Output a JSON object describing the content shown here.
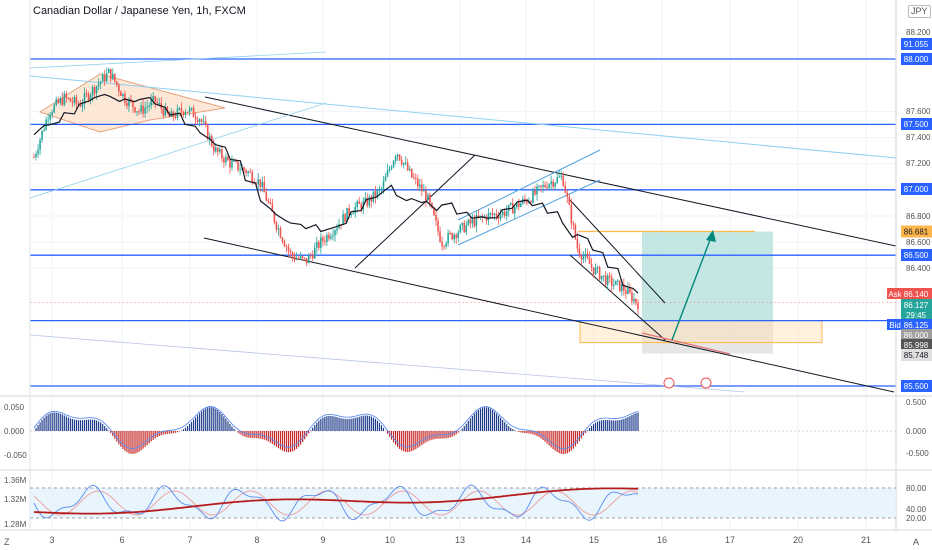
{
  "header": {
    "title": "Canadian Dollar / Japanese Yen, 1h, FXCM",
    "currency_badge": "JPY",
    "zoom_toggle": "Z",
    "auto_toggle": "A"
  },
  "colors": {
    "level_line": "#2962ff",
    "trend_line": "#131722",
    "channel_line": "#4fa3e0",
    "bull": "#26a69a",
    "bear": "#ef5350",
    "long_target_zone": "#b2dfdb",
    "long_stop_zone": "#e0e0e0",
    "ask_label": "#ef5350",
    "bid_label": "#2962ff"
  },
  "price_labels": {
    "levels": [
      "91.055",
      "88.000",
      "87.500",
      "87.000",
      "86.500",
      "85.500"
    ],
    "ticks": [
      "88.200",
      "87.600",
      "87.400",
      "87.200",
      "86.800",
      "86.600",
      "86.400"
    ],
    "target_price": "86.681",
    "ask_tag": "Ask",
    "ask_price": "86.140",
    "last_price": "86.127",
    "countdown": "29:45",
    "bid_tag": "Bid",
    "bid_price": "86.125",
    "level_86": "86.000",
    "stop_price": "85.998",
    "entry_low": "85.748"
  },
  "osc1_axis": [
    "0.500",
    "0.000",
    "-0.500"
  ],
  "osc1_left": [
    "0.050",
    "0.000",
    "-0.050"
  ],
  "osc2_axis": [
    "80.00",
    "40.00",
    "20.00"
  ],
  "osc2_left": [
    "1.36M",
    "1.32M",
    "1.28M"
  ],
  "time_axis": [
    "3",
    "6",
    "7",
    "8",
    "9",
    "10",
    "13",
    "14",
    "15",
    "16",
    "17",
    "20",
    "21"
  ],
  "chart_data": {
    "type": "candlestick",
    "title": "Canadian Dollar / Japanese Yen, 1h, FXCM",
    "ylim": [
      85.45,
      88.25
    ],
    "horizontal_levels": [
      88.0,
      87.5,
      87.0,
      86.5,
      86.0,
      85.5
    ],
    "last_price": 86.127,
    "ask": 86.14,
    "bid": 86.125,
    "long_position": {
      "entry": 86.0,
      "target": 86.681,
      "stop": 85.748
    },
    "close_path": [
      87.25,
      87.6,
      87.7,
      87.65,
      87.78,
      87.9,
      87.7,
      87.6,
      87.68,
      87.55,
      87.62,
      87.55,
      87.3,
      87.2,
      87.15,
      87.05,
      86.75,
      86.5,
      86.45,
      86.6,
      86.72,
      86.85,
      86.9,
      87.0,
      87.3,
      87.1,
      86.95,
      86.6,
      86.68,
      86.75,
      86.8,
      86.82,
      86.88,
      86.95,
      87.05,
      87.1,
      86.55,
      86.4,
      86.3,
      86.25,
      86.13
    ],
    "macd_range": [
      -0.06,
      0.06
    ],
    "stoch_range": [
      0,
      100
    ],
    "stoch_levels": [
      80,
      20
    ]
  }
}
